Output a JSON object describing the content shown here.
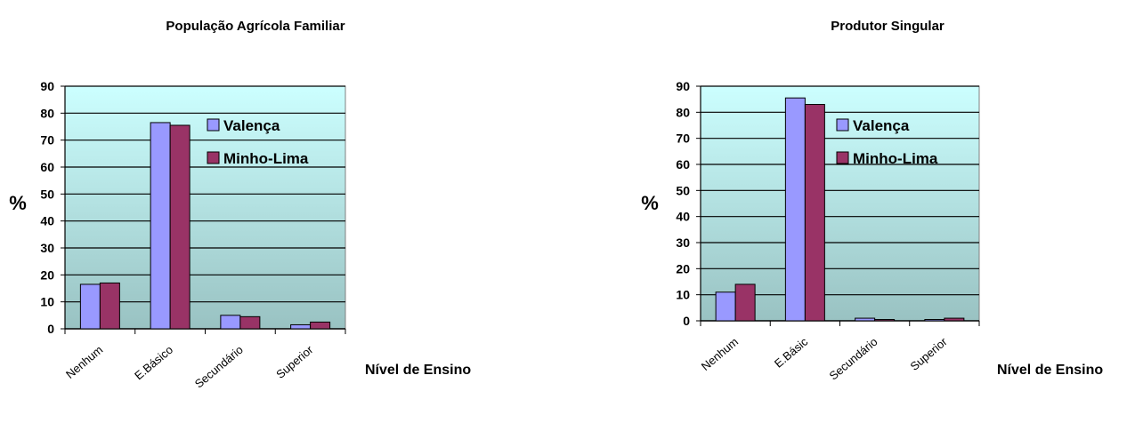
{
  "chart_data": [
    {
      "type": "bar",
      "title": "População Agrícola Familiar",
      "ylabel": "%",
      "xlabel": "Nível de Ensino",
      "ylim": [
        0,
        90
      ],
      "yticks": [
        0,
        10,
        20,
        30,
        40,
        50,
        60,
        70,
        80,
        90
      ],
      "categories": [
        "Nenhum",
        "E.Básico",
        "Secundário",
        "Superior"
      ],
      "series": [
        {
          "name": "Valença",
          "values": [
            16.5,
            76.5,
            5,
            1.5
          ],
          "color": "#9999ff"
        },
        {
          "name": "Minho-Lima",
          "values": [
            17,
            75.5,
            4.5,
            2.5
          ],
          "color": "#993366"
        }
      ],
      "legend": "top-right inside plot",
      "grid": true
    },
    {
      "type": "bar",
      "title": "Produtor Singular",
      "ylabel": "%",
      "xlabel": "Nível de Ensino",
      "ylim": [
        0,
        90
      ],
      "yticks": [
        0,
        10,
        20,
        30,
        40,
        50,
        60,
        70,
        80,
        90
      ],
      "categories": [
        "Nenhum",
        "E.Básic",
        "Secundário",
        "Superior"
      ],
      "series": [
        {
          "name": "Valença",
          "values": [
            11,
            85.5,
            1,
            0.5
          ],
          "color": "#9999ff"
        },
        {
          "name": "Minho-Lima",
          "values": [
            14,
            83,
            0.5,
            1
          ],
          "color": "#993366"
        }
      ],
      "legend": "top-right inside plot",
      "grid": true
    }
  ]
}
